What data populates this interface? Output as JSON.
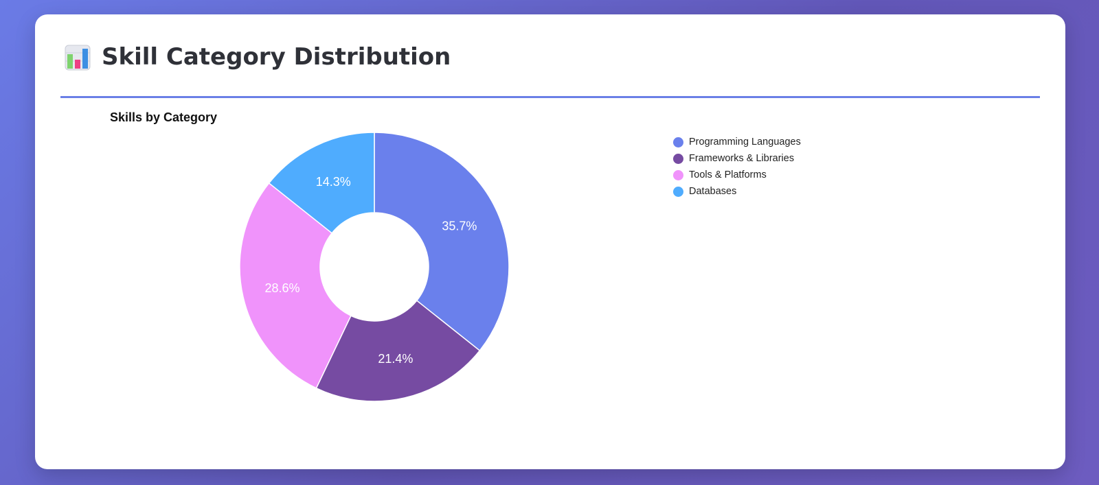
{
  "header": {
    "title": "Skill Category Distribution",
    "icon": "bar-chart-icon"
  },
  "chart_data": {
    "type": "pie",
    "variant": "doughnut",
    "title": "Skills by Category",
    "legend_position": "right",
    "categories": [
      "Programming Languages",
      "Frameworks & Libraries",
      "Tools & Platforms",
      "Databases"
    ],
    "values": [
      35.7,
      21.4,
      28.6,
      14.3
    ],
    "labels": [
      "35.7%",
      "21.4%",
      "28.6%",
      "14.3%"
    ],
    "colors": [
      "#6a80ec",
      "#764ba2",
      "#f093fb",
      "#4facfe"
    ]
  }
}
